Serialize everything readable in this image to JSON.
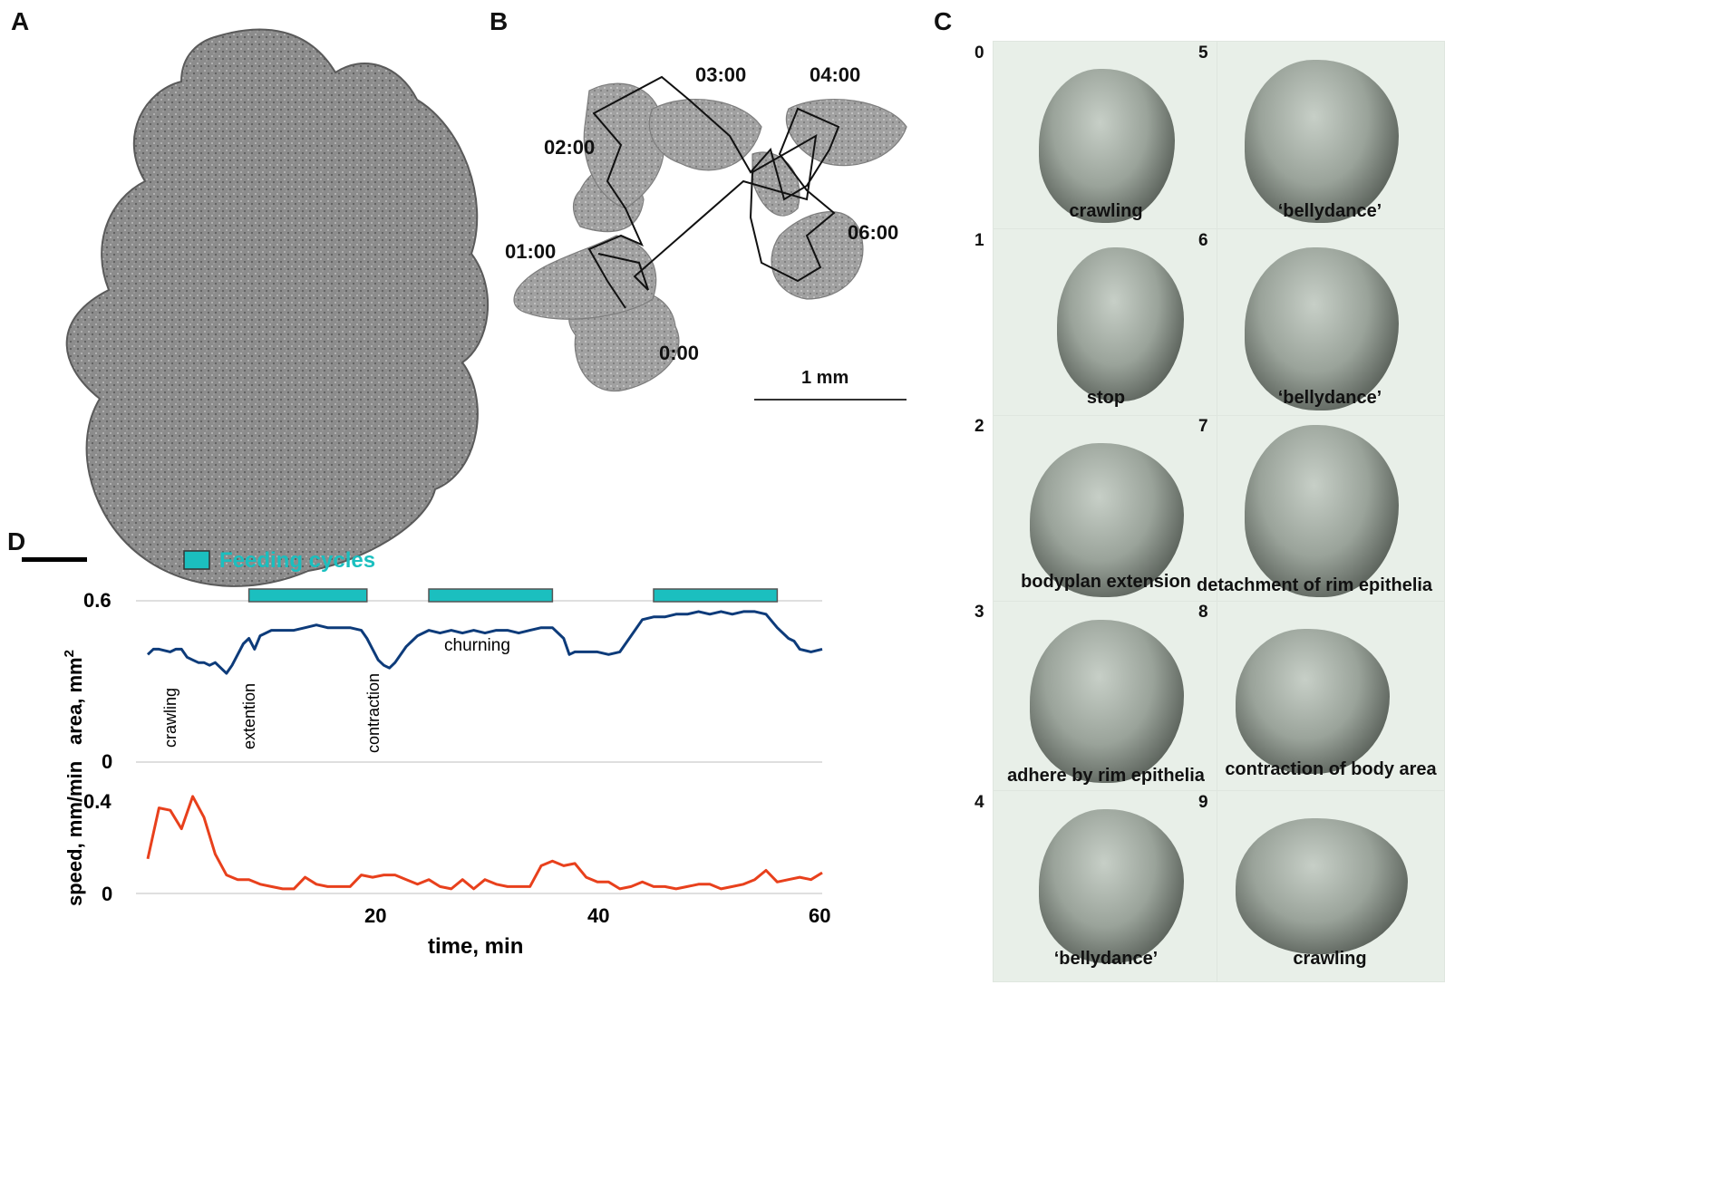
{
  "panels": {
    "a": "A",
    "b": "B",
    "c": "C",
    "d": "D"
  },
  "panel_b": {
    "time_labels": [
      "03:00",
      "04:00",
      "02:00",
      "01:00",
      "06:00",
      "0:00"
    ],
    "scale": "1 mm"
  },
  "panel_c": {
    "frames": [
      {
        "num": "0",
        "label": "crawling"
      },
      {
        "num": "1",
        "label": "stop"
      },
      {
        "num": "2",
        "label": "bodyplan extension"
      },
      {
        "num": "3",
        "label": "adhere by rim epithelia"
      },
      {
        "num": "4",
        "label": "‘bellydance’"
      },
      {
        "num": "5",
        "label": "‘bellydance’"
      },
      {
        "num": "6",
        "label": "‘bellydance’"
      },
      {
        "num": "7",
        "label": "detachment of rim epithelia"
      },
      {
        "num": "8",
        "label": "contraction of body area"
      },
      {
        "num": "9",
        "label": "crawling"
      }
    ]
  },
  "chart_data": {
    "type": "line",
    "legend": "Feeding cycles",
    "legend_color": "#1bbfbf",
    "xlabel": "time, min",
    "xticks": [
      "20",
      "40",
      "60"
    ],
    "xlim": [
      0,
      60
    ],
    "feeding_cycles": [
      [
        9,
        19.5
      ],
      [
        25,
        36
      ],
      [
        45,
        56
      ]
    ],
    "area": {
      "ylabel": "area, mm",
      "ylabel_sup": "2",
      "ylim": [
        0,
        0.6
      ],
      "yticks": [
        "0",
        "0.6"
      ],
      "color": "#0d3b7a",
      "annotations": [
        "crawling",
        "extention",
        "contraction",
        "churning"
      ],
      "x": [
        0,
        0.5,
        1,
        2,
        2.5,
        3,
        3.5,
        4,
        4.5,
        5,
        5.5,
        6,
        7,
        7.5,
        8,
        8.5,
        9,
        9.5,
        10,
        11,
        12,
        13,
        14,
        15,
        16,
        17,
        18,
        19,
        19.5,
        20,
        20.5,
        21,
        21.5,
        22,
        23,
        23.5,
        24,
        25,
        26,
        27,
        28,
        29,
        30,
        31,
        32,
        33,
        34,
        35,
        36,
        37,
        37.5,
        38,
        39,
        40,
        41,
        42,
        43,
        44,
        45,
        46,
        47,
        48,
        49,
        50,
        51,
        52,
        53,
        54,
        55,
        56,
        57,
        57.5,
        58,
        59,
        60
      ],
      "y": [
        0.4,
        0.42,
        0.42,
        0.41,
        0.42,
        0.42,
        0.39,
        0.38,
        0.37,
        0.37,
        0.36,
        0.37,
        0.33,
        0.36,
        0.4,
        0.44,
        0.46,
        0.42,
        0.47,
        0.49,
        0.49,
        0.49,
        0.5,
        0.51,
        0.5,
        0.5,
        0.5,
        0.49,
        0.46,
        0.42,
        0.38,
        0.36,
        0.35,
        0.37,
        0.43,
        0.45,
        0.47,
        0.49,
        0.48,
        0.49,
        0.48,
        0.49,
        0.48,
        0.49,
        0.49,
        0.48,
        0.49,
        0.5,
        0.5,
        0.46,
        0.4,
        0.41,
        0.41,
        0.41,
        0.4,
        0.41,
        0.47,
        0.53,
        0.54,
        0.54,
        0.55,
        0.55,
        0.56,
        0.55,
        0.56,
        0.55,
        0.56,
        0.56,
        0.55,
        0.5,
        0.46,
        0.45,
        0.42,
        0.41,
        0.42
      ]
    },
    "speed": {
      "ylabel": "speed, mm/min",
      "ylim": [
        0,
        0.4
      ],
      "yticks": [
        "0",
        "0.4"
      ],
      "color": "#e8401c",
      "x": [
        0,
        1,
        2,
        3,
        4,
        5,
        6,
        7,
        8,
        9,
        10,
        11,
        12,
        13,
        14,
        15,
        16,
        17,
        18,
        19,
        20,
        21,
        22,
        23,
        24,
        25,
        26,
        27,
        28,
        29,
        30,
        31,
        32,
        33,
        34,
        35,
        36,
        37,
        38,
        39,
        40,
        41,
        42,
        43,
        44,
        45,
        46,
        47,
        48,
        49,
        50,
        51,
        52,
        53,
        54,
        55,
        56,
        57,
        58,
        59,
        60
      ],
      "y": [
        0.15,
        0.37,
        0.36,
        0.28,
        0.42,
        0.33,
        0.17,
        0.08,
        0.06,
        0.06,
        0.04,
        0.03,
        0.02,
        0.02,
        0.07,
        0.04,
        0.03,
        0.03,
        0.03,
        0.08,
        0.07,
        0.08,
        0.08,
        0.06,
        0.04,
        0.06,
        0.03,
        0.02,
        0.06,
        0.02,
        0.06,
        0.04,
        0.03,
        0.03,
        0.03,
        0.12,
        0.14,
        0.12,
        0.13,
        0.07,
        0.05,
        0.05,
        0.02,
        0.03,
        0.05,
        0.03,
        0.03,
        0.02,
        0.03,
        0.04,
        0.04,
        0.02,
        0.03,
        0.04,
        0.06,
        0.1,
        0.05,
        0.06,
        0.07,
        0.06,
        0.09
      ]
    }
  }
}
